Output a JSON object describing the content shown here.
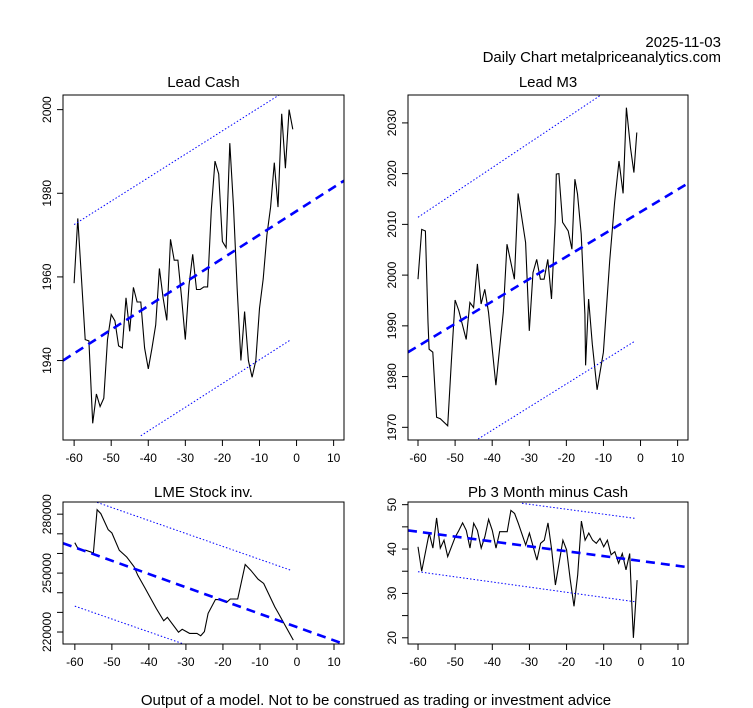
{
  "header": {
    "date": "2025-11-03",
    "source": "Daily Chart metalpriceanalytics.com"
  },
  "footer": {
    "disclaimer": "Output of a model. Not to be construed as trading or investment advice"
  },
  "colors": {
    "series": "#000000",
    "trend": "#0000ff",
    "band": "#0000ff",
    "axis": "#000000"
  },
  "chart_data": [
    {
      "id": "lead-cash",
      "type": "line",
      "title": "Lead Cash",
      "xlabel": "",
      "ylabel": "",
      "xlim": [
        -63,
        12.8
      ],
      "ylim": [
        1921,
        2003.5
      ],
      "xticks": [
        -60,
        -50,
        -40,
        -30,
        -20,
        -10,
        0,
        10
      ],
      "yticks": [
        1940,
        1960,
        1980,
        2000
      ],
      "ytick_labels": [
        "1940",
        "1960",
        "1980",
        "2000"
      ],
      "grid": false,
      "series": [
        {
          "name": "price",
          "style": "solid",
          "x": [
            -60,
            -59,
            -58,
            -57,
            -56,
            -55,
            -54,
            -53,
            -52,
            -51,
            -50,
            -49,
            -48,
            -47,
            -46,
            -45,
            -44,
            -43,
            -42,
            -41,
            -40,
            -39,
            -38,
            -37,
            -36,
            -35,
            -34,
            -33,
            -32,
            -31,
            -30,
            -29,
            -28,
            -27,
            -26,
            -25,
            -24,
            -23,
            -22,
            -21,
            -20,
            -19,
            -18,
            -17,
            -16,
            -15,
            -14,
            -13,
            -12,
            -11,
            -10,
            -9,
            -8,
            -7,
            -6,
            -5,
            -4,
            -3,
            -2,
            -1
          ],
          "y": [
            1958.5,
            1974,
            1959.5,
            1945,
            1944.7,
            1925,
            1932,
            1929,
            1931,
            1945,
            1951,
            1949.5,
            1943.5,
            1943,
            1955,
            1947,
            1957.5,
            1954,
            1954,
            1943,
            1938,
            1943,
            1948.5,
            1962,
            1955,
            1949.6,
            1969,
            1964,
            1964,
            1955,
            1945,
            1958,
            1965.4,
            1957,
            1957,
            1957.6,
            1957.6,
            1976,
            1987.7,
            1984.6,
            1968.5,
            1967,
            1992,
            1976.8,
            1957,
            1940,
            1951.7,
            1940,
            1936,
            1940,
            1952.5,
            1959.5,
            1970,
            1976.7,
            1987.3,
            1976.7,
            1999,
            1986,
            2000,
            1995.3
          ]
        },
        {
          "name": "trend",
          "style": "dashed",
          "x": [
            -63,
            12.8
          ],
          "y": [
            1940,
            1983
          ]
        },
        {
          "name": "upper band",
          "style": "dotted",
          "x": [
            -60,
            -1.5
          ],
          "y": [
            1972.5,
            2005.3
          ]
        },
        {
          "name": "lower band",
          "style": "dotted",
          "x": [
            -42,
            -1.5
          ],
          "y": [
            1922,
            1945
          ]
        }
      ]
    },
    {
      "id": "lead-m3",
      "type": "line",
      "title": "Lead M3",
      "xlabel": "",
      "ylabel": "",
      "xlim": [
        -62.7,
        12.8
      ],
      "ylim": [
        1967.5,
        2035.5
      ],
      "xticks": [
        -60,
        -50,
        -40,
        -30,
        -20,
        -10,
        0,
        10
      ],
      "yticks": [
        1970,
        1980,
        1990,
        2000,
        2010,
        2020,
        2030
      ],
      "ytick_labels": [
        "1970",
        "1980",
        "1990",
        "2000",
        "2010",
        "2020",
        "2030"
      ],
      "grid": false,
      "series": [
        {
          "name": "price",
          "style": "solid",
          "x": [
            -60,
            -59,
            -58,
            -57.3,
            -57,
            -56,
            -55,
            -54,
            -52,
            -51,
            -50,
            -49,
            -47,
            -46,
            -45,
            -44,
            -43,
            -42,
            -41,
            -39,
            -37,
            -36,
            -34,
            -33,
            -31,
            -30,
            -29,
            -28,
            -27,
            -26,
            -25,
            -24,
            -23,
            -22.7,
            -22,
            -21,
            -19.5,
            -18.5,
            -17.7,
            -17,
            -16,
            -15,
            -14.8,
            -14,
            -13,
            -11.7,
            -10,
            -8.3,
            -7,
            -5.8,
            -4.7,
            -3.8,
            -2.7,
            -1.8,
            -1
          ],
          "y": [
            1999.2,
            2009,
            2008.7,
            1990.7,
            1985.4,
            1984.8,
            1972,
            1971.7,
            1970.3,
            1983.1,
            1995.1,
            1993,
            1987.3,
            1994.6,
            1993.6,
            2002.2,
            1994.3,
            1997.2,
            1992.7,
            1978.3,
            1992.7,
            2006.1,
            1999.2,
            2016.1,
            2006.4,
            1989,
            2000.5,
            2003.1,
            1999.2,
            1999.2,
            2003.1,
            1995.3,
            2010.4,
            2019.9,
            2020,
            2010.4,
            2008.7,
            2005.1,
            2018.9,
            2016,
            2008.1,
            1992.3,
            1982.2,
            1995.3,
            1986.4,
            1977.4,
            1984.8,
            2002.8,
            2014.3,
            2022.5,
            2016.1,
            2033,
            2025.1,
            2020.2,
            2028.1
          ]
        },
        {
          "name": "trend",
          "style": "dashed",
          "x": [
            -62.7,
            12.8
          ],
          "y": [
            1984.8,
            2018.1
          ]
        },
        {
          "name": "upper band",
          "style": "dotted",
          "x": [
            -60,
            -1.5
          ],
          "y": [
            2011.4,
            2040
          ]
        },
        {
          "name": "lower band",
          "style": "dotted",
          "x": [
            -43.8,
            -1.5
          ],
          "y": [
            1967.7,
            1987
          ]
        }
      ]
    },
    {
      "id": "lme-stock",
      "type": "line",
      "title": "LME Stock inv.",
      "xlabel": "",
      "ylabel": "",
      "xlim": [
        -63.2,
        12.7
      ],
      "ylim": [
        213900,
        286200
      ],
      "xticks": [
        -60,
        -50,
        -40,
        -30,
        -20,
        -10,
        0,
        10
      ],
      "yticks": [
        220000,
        230000,
        240000,
        250000,
        260000,
        270000,
        280000
      ],
      "ytick_labels": [
        "220000",
        "",
        "",
        "250000",
        "",
        "",
        "280000"
      ],
      "grid": false,
      "series": [
        {
          "name": "inventory",
          "style": "solid",
          "x": [
            -60,
            -59,
            -57,
            -55,
            -54,
            -53,
            -51,
            -50,
            -48,
            -46,
            -44,
            -43,
            -41,
            -40,
            -38,
            -36,
            -35,
            -32,
            -31,
            -29,
            -27,
            -26,
            -25,
            -24,
            -22,
            -20,
            -19,
            -18,
            -16,
            -14,
            -12.5,
            -10.5,
            -9,
            -6,
            -5,
            -3.5,
            -1
          ],
          "y": [
            265500,
            262000,
            261600,
            260300,
            282300,
            280300,
            272100,
            270400,
            261600,
            258200,
            253200,
            248900,
            242200,
            238800,
            232000,
            225700,
            227500,
            219900,
            221400,
            219300,
            219300,
            218100,
            220200,
            229500,
            236600,
            236300,
            235100,
            236800,
            236800,
            254400,
            251500,
            246900,
            244700,
            232800,
            229500,
            224400,
            215900
          ]
        },
        {
          "name": "trend",
          "style": "dashed",
          "x": [
            -63.2,
            12.7
          ],
          "y": [
            265200,
            213900
          ]
        },
        {
          "name": "upper band",
          "style": "dotted",
          "x": [
            -54,
            -1.7
          ],
          "y": [
            286000,
            251500
          ]
        },
        {
          "name": "lower band",
          "style": "dotted",
          "x": [
            -60,
            -30.6
          ],
          "y": [
            233200,
            213900
          ]
        }
      ]
    },
    {
      "id": "pb-spread",
      "type": "line",
      "title": "Pb 3 Month minus Cash",
      "xlabel": "",
      "ylabel": "",
      "xlim": [
        -62.7,
        12.7
      ],
      "ylim": [
        18.6,
        50.6
      ],
      "xticks": [
        -60,
        -50,
        -40,
        -30,
        -20,
        -10,
        0,
        10
      ],
      "yticks": [
        20,
        25,
        30,
        35,
        40,
        45,
        50
      ],
      "ytick_labels": [
        "20",
        "",
        "30",
        "",
        "40",
        "",
        "50"
      ],
      "grid": false,
      "series": [
        {
          "name": "spread",
          "style": "solid",
          "x": [
            -60,
            -59,
            -57,
            -56,
            -55,
            -54,
            -53,
            -52,
            -50,
            -49,
            -48,
            -47,
            -46,
            -45,
            -44,
            -43,
            -42,
            -41,
            -40,
            -39,
            -38,
            -36,
            -35,
            -34,
            -33,
            -31,
            -30,
            -28,
            -27,
            -26,
            -25,
            -24,
            -23,
            -21,
            -20,
            -19,
            -18,
            -17,
            -16,
            -15,
            -14,
            -13,
            -12,
            -11,
            -10,
            -9,
            -8,
            -7,
            -6,
            -5,
            -4,
            -3,
            -2.5,
            -2,
            -1
          ],
          "y": [
            40.5,
            35,
            43.6,
            40.2,
            47,
            40.2,
            42,
            38.3,
            42.7,
            44.2,
            45.9,
            44.2,
            40.2,
            45.8,
            44.2,
            40.2,
            42.8,
            46.7,
            44.2,
            40.2,
            43.9,
            43.9,
            48.7,
            48,
            45.8,
            40.9,
            43.6,
            37.5,
            41.3,
            42,
            45.9,
            39.8,
            31.9,
            42,
            39.8,
            33,
            27.1,
            34.2,
            46.3,
            42,
            43.6,
            42,
            41.3,
            42.4,
            40.5,
            42,
            38.7,
            39.4,
            36.8,
            39,
            35.3,
            39,
            28.6,
            20,
            33
          ]
        },
        {
          "name": "trend",
          "style": "dashed",
          "x": [
            -62.7,
            12.7
          ],
          "y": [
            44.2,
            35.9
          ]
        },
        {
          "name": "upper band",
          "style": "dotted",
          "x": [
            -32,
            -1.5
          ],
          "y": [
            50.3,
            46.9
          ]
        },
        {
          "name": "lower band",
          "style": "dotted",
          "x": [
            -60,
            -1.5
          ],
          "y": [
            34.9,
            28.1
          ]
        }
      ]
    }
  ]
}
